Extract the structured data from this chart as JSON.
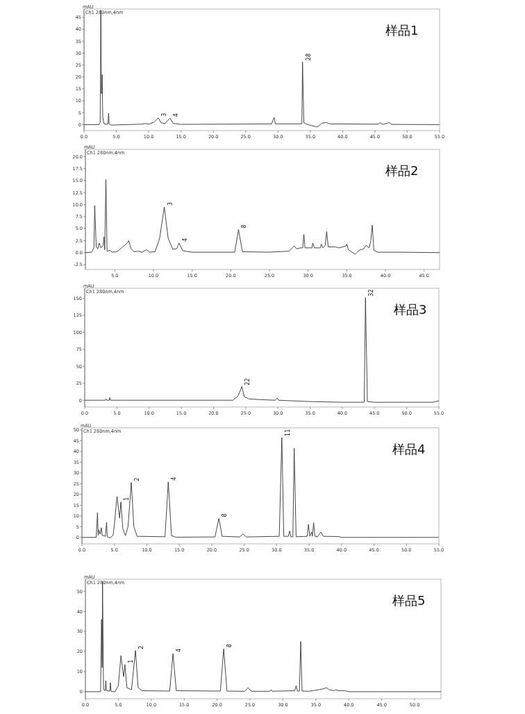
{
  "chart_data": [
    {
      "type": "line",
      "title": "样品1",
      "subtitle": "Ch1 280nm,4nm",
      "ylabel": "mAU",
      "xlim": [
        0,
        55
      ],
      "ylim": [
        -2.5,
        48.5
      ],
      "xticks": [
        {
          "value": 0,
          "label": "0.0"
        },
        {
          "value": 5,
          "label": "5.0"
        },
        {
          "value": 10,
          "label": "10.0"
        },
        {
          "value": 15,
          "label": "15.0"
        },
        {
          "value": 20,
          "label": "20.0"
        },
        {
          "value": 25,
          "label": "25.0"
        },
        {
          "value": 30,
          "label": "30.0"
        },
        {
          "value": 35,
          "label": "35.0"
        },
        {
          "value": 40,
          "label": "40.0"
        },
        {
          "value": 45,
          "label": "45.0"
        },
        {
          "value": 50,
          "label": "50.0"
        },
        {
          "value": 55,
          "label": "55.0"
        }
      ],
      "yticks": [
        0,
        5,
        10,
        15,
        20,
        25,
        30,
        35,
        40,
        45
      ],
      "annotations": [
        {
          "text": "3",
          "x": 11.5,
          "y": 2.8
        },
        {
          "text": "4",
          "x": 13.3,
          "y": 2.7
        },
        {
          "text": "28",
          "x": 33.8,
          "y": 26.3
        }
      ],
      "series": [
        {
          "color": "#333333",
          "x": [
            0,
            2.3,
            2.5,
            2.6,
            2.7,
            2.8,
            2.9,
            3.1,
            3.7,
            3.8,
            3.9,
            4.2,
            9,
            9.5,
            10,
            10.8,
            11.5,
            11.9,
            12.5,
            13.3,
            13.8,
            15,
            29,
            29.4,
            29.6,
            33.7,
            33.8,
            34,
            34.5,
            36.1,
            36.8,
            37.4,
            38,
            45.5,
            45.8,
            46.2,
            47.2,
            47.6,
            55
          ],
          "values": [
            0,
            0,
            1,
            48,
            13,
            21,
            3,
            0.3,
            0.2,
            4.8,
            0.2,
            -0.2,
            0.2,
            0.5,
            0.2,
            1,
            2.8,
            0.8,
            0.4,
            2.7,
            0.5,
            0.1,
            0.3,
            3,
            0.3,
            0.3,
            26.3,
            0.8,
            0.1,
            -1,
            0.6,
            0.9,
            0.3,
            0.2,
            0.8,
            0.1,
            0.8,
            0.1,
            0
          ]
        }
      ]
    },
    {
      "type": "line",
      "title": "样品2",
      "subtitle": "Ch1 280nm,4nm",
      "ylabel": "mAU",
      "xlim": [
        1.2,
        47
      ],
      "ylim": [
        -3.5,
        21.5
      ],
      "xticks": [
        {
          "value": 5,
          "label": "5.0"
        },
        {
          "value": 10,
          "label": "10.0"
        },
        {
          "value": 15,
          "label": "15.0"
        },
        {
          "value": 20,
          "label": "20.0"
        },
        {
          "value": 25,
          "label": "25.0"
        },
        {
          "value": 30,
          "label": "30.0"
        },
        {
          "value": 35,
          "label": "35.0"
        },
        {
          "value": 40,
          "label": "40.0"
        },
        {
          "value": 45,
          "label": "45.0"
        }
      ],
      "yticks": [
        {
          "value": -2.5,
          "label": "-2.5"
        },
        {
          "value": 0,
          "label": "0.0"
        },
        {
          "value": 2.5,
          "label": "2.5"
        },
        {
          "value": 5,
          "label": "5.0"
        },
        {
          "value": 7.5,
          "label": "7.5"
        },
        {
          "value": 10,
          "label": "10.0"
        },
        {
          "value": 12.5,
          "label": "12.5"
        },
        {
          "value": 15,
          "label": "15.0"
        },
        {
          "value": 17.5,
          "label": "17.5"
        },
        {
          "value": 20,
          "label": "20.0"
        }
      ],
      "annotations": [
        {
          "text": "3",
          "x": 11.4,
          "y": 9.5
        },
        {
          "text": "4",
          "x": 13.3,
          "y": 2
        },
        {
          "text": "8",
          "x": 21.0,
          "y": 4.8
        }
      ],
      "series": [
        {
          "color": "#333333",
          "x": [
            1.2,
            2,
            2.3,
            2.4,
            2.6,
            2.8,
            3.0,
            3.2,
            3.5,
            3.6,
            3.7,
            3.85,
            4.0,
            4.4,
            4.6,
            5.3,
            6,
            6.5,
            6.8,
            7.1,
            7.5,
            8.1,
            8.5,
            9.1,
            9.5,
            10.2,
            10.8,
            11.4,
            11.9,
            12.5,
            13.0,
            13.3,
            13.8,
            15,
            20.5,
            21.0,
            21.5,
            24.8,
            27.5,
            28.2,
            28.5,
            29,
            29.3,
            29.45,
            29.6,
            30.5,
            30.6,
            30.8,
            31.6,
            31.7,
            31.9,
            32.2,
            32.4,
            32.6,
            33.5,
            34.0,
            34.9,
            35.0,
            35.2,
            36.1,
            36.6,
            37.2,
            37.5,
            37.9,
            38.1,
            38.3,
            38.5,
            39,
            41.8,
            47
          ],
          "values": [
            0,
            0.1,
            1,
            9.8,
            1.2,
            0.8,
            2.0,
            1.0,
            1.5,
            3.3,
            0.6,
            15.2,
            0.3,
            0.5,
            0.1,
            0.2,
            1.2,
            1.8,
            2.5,
            0.8,
            0.2,
            0.3,
            0.1,
            0.6,
            0.1,
            0.2,
            3,
            9.5,
            3,
            0.7,
            0.8,
            2,
            0.4,
            0.1,
            0.1,
            4.8,
            0.2,
            0.1,
            0.3,
            1.4,
            0.8,
            1.0,
            1.0,
            3.8,
            1.0,
            1.0,
            2.0,
            1.0,
            1.0,
            1.8,
            1.0,
            1.5,
            4.4,
            1.2,
            1.2,
            1.0,
            1.4,
            1.8,
            0.6,
            -0.3,
            0.5,
            0.8,
            1.5,
            1.0,
            2.5,
            5.7,
            0.5,
            0.1,
            0.1,
            0
          ]
        }
      ]
    },
    {
      "type": "line",
      "title": "样品3",
      "subtitle": "Ch1 280nm,4nm",
      "ylabel": "mAU",
      "xlim": [
        0,
        55
      ],
      "ylim": [
        -10,
        165
      ],
      "xticks": [
        {
          "value": 0,
          "label": "0.0"
        },
        {
          "value": 5,
          "label": "5.0"
        },
        {
          "value": 10,
          "label": "10.0"
        },
        {
          "value": 15,
          "label": "15.0"
        },
        {
          "value": 20,
          "label": "20.0"
        },
        {
          "value": 25,
          "label": "25.0"
        },
        {
          "value": 30,
          "label": "30.0"
        },
        {
          "value": 35,
          "label": "35.0"
        },
        {
          "value": 40,
          "label": "40.0"
        },
        {
          "value": 45,
          "label": "45.0"
        },
        {
          "value": 50,
          "label": "50.0"
        },
        {
          "value": 55,
          "label": "55.0"
        }
      ],
      "yticks": [
        0,
        25,
        50,
        75,
        100,
        125,
        150
      ],
      "annotations": [
        {
          "text": "22",
          "x": 24.4,
          "y": 20
        },
        {
          "text": "32",
          "x": 43.6,
          "y": 151
        }
      ],
      "series": [
        {
          "color": "#333333",
          "x": [
            0,
            3.2,
            3.3,
            3.4,
            3.8,
            3.9,
            4.0,
            20,
            23,
            23.8,
            24.4,
            24.8,
            25.5,
            27,
            29.6,
            29.9,
            30.1,
            35,
            40,
            43.4,
            43.6,
            43.9,
            45,
            54,
            55
          ],
          "values": [
            0,
            0,
            2,
            0,
            0,
            4,
            0,
            0,
            0,
            6,
            20,
            5,
            2,
            1,
            0,
            3,
            0,
            -2,
            -3,
            -3,
            151,
            -2,
            -3,
            -3,
            -1
          ]
        }
      ]
    },
    {
      "type": "line",
      "title": "样品4",
      "subtitle": "Ch1 280nm,4nm",
      "ylabel": "mAU",
      "xlim": [
        0,
        55
      ],
      "ylim": [
        -3,
        51
      ],
      "xticks": [
        {
          "value": 0,
          "label": "0.0"
        },
        {
          "value": 5,
          "label": "5.0"
        },
        {
          "value": 10,
          "label": "10.0"
        },
        {
          "value": 15,
          "label": "15.0"
        },
        {
          "value": 20,
          "label": "20.0"
        },
        {
          "value": 25,
          "label": "25.0"
        },
        {
          "value": 30,
          "label": "30.0"
        },
        {
          "value": 35,
          "label": "35.0"
        },
        {
          "value": 40,
          "label": "40.0"
        },
        {
          "value": 45,
          "label": "45.0"
        },
        {
          "value": 50,
          "label": "50.0"
        },
        {
          "value": 55,
          "label": "55.0"
        }
      ],
      "yticks": [
        0,
        5,
        10,
        15,
        20,
        25,
        30,
        35,
        40,
        45,
        50
      ],
      "annotations": [
        {
          "text": "1",
          "x": 6.0,
          "y": 16.5
        },
        {
          "text": "2",
          "x": 7.6,
          "y": 25.5
        },
        {
          "text": "4",
          "x": 13.3,
          "y": 25.8
        },
        {
          "text": "8",
          "x": 21.1,
          "y": 8.8
        },
        {
          "text": "11",
          "x": 30.8,
          "y": 46.5
        }
      ],
      "series": [
        {
          "color": "#333333",
          "x": [
            0,
            2.2,
            2.4,
            2.5,
            2.6,
            2.8,
            3.0,
            3.1,
            3.6,
            3.8,
            3.9,
            4.3,
            4.8,
            5.0,
            5.4,
            5.8,
            6.0,
            6.3,
            6.7,
            7.1,
            7.6,
            8.0,
            8.5,
            12.8,
            13.3,
            13.8,
            14.5,
            20.5,
            21.1,
            21.6,
            24.3,
            24.8,
            25.3,
            30.4,
            30.8,
            31.1,
            31.8,
            32.0,
            32.2,
            32.5,
            32.7,
            33.0,
            34.7,
            34.9,
            35.1,
            35.4,
            35.5,
            35.7,
            35.9,
            36.3,
            36.8,
            37.2,
            39.5,
            40,
            55
          ],
          "values": [
            0,
            0,
            11.5,
            1,
            3.5,
            1.5,
            4.5,
            1,
            0.5,
            7,
            0.3,
            -0.3,
            1,
            6,
            19,
            9,
            16.5,
            4,
            0.8,
            5,
            25.5,
            5,
            0.5,
            0.3,
            25.8,
            0.8,
            0.1,
            0.2,
            8.8,
            0.5,
            0.2,
            1.6,
            0.2,
            0.5,
            46.5,
            0.5,
            0.5,
            3,
            0.3,
            0.3,
            41.5,
            0.3,
            0.5,
            6,
            0.5,
            2.5,
            0.5,
            6.8,
            0.5,
            0.3,
            2.5,
            0.5,
            0.4,
            0,
            0
          ]
        }
      ]
    },
    {
      "type": "line",
      "title": "样品5",
      "subtitle": "Ch1 280nm,4nm",
      "ylabel": "mAU",
      "xlim": [
        0,
        54
      ],
      "ylim": [
        -3.5,
        56
      ],
      "xticks": [
        {
          "value": 0,
          "label": "0.0"
        },
        {
          "value": 5,
          "label": "5.0"
        },
        {
          "value": 10,
          "label": "10.0"
        },
        {
          "value": 15,
          "label": "15.0"
        },
        {
          "value": 20,
          "label": "20.0"
        },
        {
          "value": 25,
          "label": "25.0"
        },
        {
          "value": 30,
          "label": "30.0"
        },
        {
          "value": 35,
          "label": "35.0"
        },
        {
          "value": 40,
          "label": "40.0"
        },
        {
          "value": 45,
          "label": "45.0"
        },
        {
          "value": 50,
          "label": "50.0"
        }
      ],
      "yticks": [
        0,
        10,
        20,
        30,
        40,
        50
      ],
      "annotations": [
        {
          "text": "1",
          "x": 6.0,
          "y": 13.5
        },
        {
          "text": "2",
          "x": 7.6,
          "y": 20.5
        },
        {
          "text": "4",
          "x": 13.3,
          "y": 19
        },
        {
          "text": "8",
          "x": 21.0,
          "y": 21.3
        }
      ],
      "series": [
        {
          "color": "#333333",
          "x": [
            0,
            2.3,
            2.45,
            2.55,
            2.6,
            2.75,
            3.0,
            3.1,
            3.2,
            3.7,
            3.8,
            3.9,
            4.5,
            5.0,
            5.4,
            5.8,
            6.0,
            6.3,
            7.0,
            7.6,
            8.0,
            8.6,
            12.8,
            13.3,
            13.8,
            20.5,
            21.0,
            21.5,
            24.2,
            24.7,
            25.2,
            28,
            28.2,
            28.4,
            31.8,
            32.0,
            32.2,
            32.5,
            32.7,
            32.9,
            34,
            35.5,
            36.2,
            36.6,
            37,
            37.8,
            38,
            38.5,
            39.4,
            40,
            54
          ],
          "values": [
            0,
            0,
            36,
            12,
            55,
            1,
            0.5,
            5.5,
            0.5,
            0.3,
            4.5,
            0.1,
            0,
            3,
            18,
            7.5,
            13.5,
            2,
            1,
            20.5,
            2,
            0.5,
            0.3,
            19,
            0.5,
            0.3,
            21.3,
            0.3,
            0.2,
            2,
            0.2,
            0.2,
            1,
            0.2,
            0.5,
            3,
            0.3,
            0.3,
            25,
            0.3,
            0.2,
            1,
            1.5,
            2,
            1,
            0.5,
            1,
            0.5,
            0.5,
            0,
            0
          ]
        }
      ]
    }
  ]
}
